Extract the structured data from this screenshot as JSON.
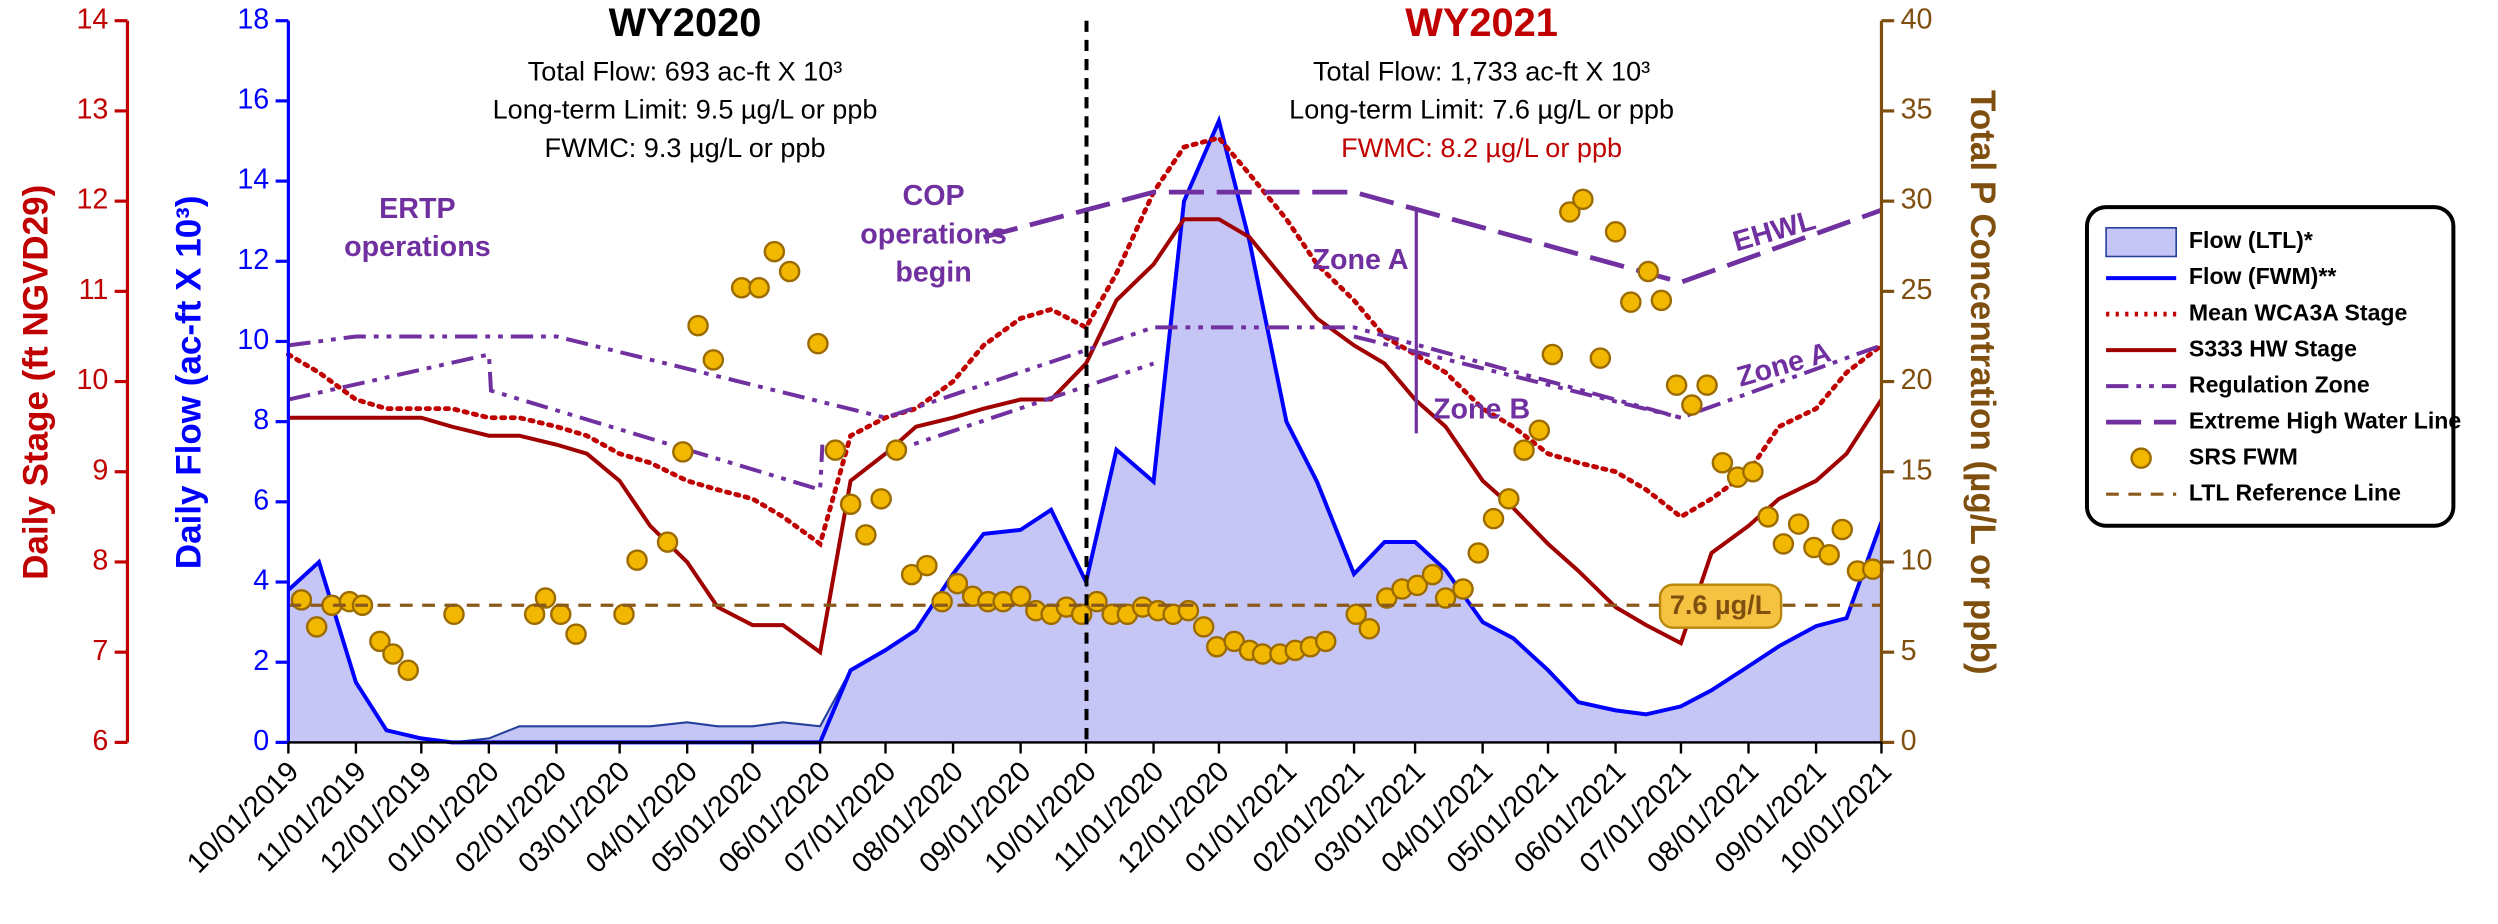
{
  "chart_data": {
    "type": "line",
    "ylabel": "Daily Flow (ac-ft X 10³)",
    "y2label": "Total P Concentration (µg/L or ppb)",
    "y3label": "Daily Stage (ft NGVD29)",
    "ylim": [
      0,
      18
    ],
    "yticks": [
      0,
      2,
      4,
      6,
      8,
      10,
      12,
      14,
      16,
      18
    ],
    "y2lim": [
      0,
      40
    ],
    "y2ticks": [
      0,
      5,
      10,
      15,
      20,
      25,
      30,
      35,
      40
    ],
    "y3lim": [
      6,
      14
    ],
    "y3ticks": [
      6,
      7,
      8,
      9,
      10,
      11,
      12,
      13,
      14
    ],
    "xlim": [
      "10/01/2019",
      "10/01/2021"
    ],
    "xticks": [
      "10/01/2019",
      "11/01/2019",
      "12/01/2019",
      "01/01/2020",
      "02/01/2020",
      "03/01/2020",
      "04/01/2020",
      "05/01/2020",
      "06/01/2020",
      "07/01/2020",
      "08/01/2020",
      "09/01/2020",
      "10/01/2020",
      "11/01/2020",
      "12/01/2020",
      "01/01/2021",
      "02/01/2021",
      "03/01/2021",
      "04/01/2021",
      "05/01/2021",
      "06/01/2021",
      "07/01/2021",
      "08/01/2021",
      "09/01/2021",
      "10/01/2021"
    ],
    "wy2020": {
      "title": "WY2020",
      "lines": [
        "Total Flow:  693 ac-ft X 10³",
        "Long-term Limit: 9.5 µg/L or ppb",
        "FWMC:  9.3 µg/L or ppb"
      ]
    },
    "wy2021": {
      "title": "WY2021",
      "lines": [
        "Total Flow:  1,733 ac-ft X 10³",
        "Long-term Limit: 7.6 µg/L or ppb",
        "FWMC:  8.2 µg/L or ppb"
      ]
    },
    "annotations": [
      "ERTP",
      "operations",
      "COP",
      "operations",
      "begin",
      "Zone A",
      "Zone B",
      "EHWL",
      "Zone A"
    ],
    "x": [
      "10/01/2019",
      "10/15/2019",
      "11/01/2019",
      "11/15/2019",
      "12/01/2019",
      "12/15/2019",
      "01/01/2020",
      "01/15/2020",
      "02/01/2020",
      "02/15/2020",
      "03/01/2020",
      "03/15/2020",
      "04/01/2020",
      "04/15/2020",
      "05/01/2020",
      "05/15/2020",
      "06/01/2020",
      "06/15/2020",
      "07/01/2020",
      "07/15/2020",
      "08/01/2020",
      "08/15/2020",
      "09/01/2020",
      "09/15/2020",
      "10/01/2020",
      "10/15/2020",
      "11/01/2020",
      "11/15/2020",
      "12/01/2020",
      "12/15/2020",
      "01/01/2021",
      "01/15/2021",
      "02/01/2021",
      "02/15/2021",
      "03/01/2021",
      "03/15/2021",
      "04/01/2021",
      "04/15/2021",
      "05/01/2021",
      "05/15/2021",
      "06/01/2021",
      "06/15/2021",
      "07/01/2021",
      "07/15/2021",
      "08/01/2021",
      "08/15/2021",
      "09/01/2021",
      "09/15/2021",
      "10/01/2021"
    ],
    "series": [
      {
        "name": "Flow (LTL)*",
        "style": "area",
        "axis": "y",
        "color": "#c6c6f6",
        "edge": "#24409a",
        "values": [
          3.8,
          4.5,
          1.5,
          0.3,
          0.1,
          0,
          0.1,
          0.4,
          0.4,
          0.4,
          0.4,
          0.4,
          0.5,
          0.4,
          0.4,
          0.5,
          0.4,
          1.8,
          2.3,
          2.8,
          4.2,
          5.2,
          5.3,
          5.8,
          4.0,
          7.3,
          6.5,
          13.5,
          15.5,
          12.5,
          8.0,
          6.5,
          4.2,
          5.0,
          5.0,
          4.3,
          3.0,
          2.6,
          1.8,
          1.0,
          0.8,
          0.7,
          0.9,
          1.3,
          1.9,
          2.4,
          2.9,
          3.1,
          5.5
        ]
      },
      {
        "name": "Flow (FWM)**",
        "style": "solid",
        "axis": "y",
        "color": "#0000ff",
        "values": [
          3.8,
          4.5,
          1.5,
          0.3,
          0.1,
          0,
          0,
          0,
          0,
          0,
          0,
          0,
          0,
          0,
          0,
          0,
          0,
          1.8,
          2.3,
          2.8,
          4.2,
          5.2,
          5.3,
          5.8,
          4.0,
          7.3,
          6.5,
          13.5,
          15.5,
          12.5,
          8.0,
          6.5,
          4.2,
          5.0,
          5.0,
          4.3,
          3.0,
          2.6,
          1.8,
          1.0,
          0.8,
          0.7,
          0.9,
          1.3,
          1.9,
          2.4,
          2.9,
          3.1,
          5.5
        ]
      },
      {
        "name": "Mean WCA3A Stage",
        "style": "dotted",
        "axis": "y3",
        "color": "#c00000",
        "values": [
          10.3,
          10.1,
          9.8,
          9.7,
          9.7,
          9.7,
          9.6,
          9.6,
          9.5,
          9.4,
          9.2,
          9.1,
          8.9,
          8.8,
          8.7,
          8.5,
          8.2,
          9.4,
          9.6,
          9.7,
          10.0,
          10.4,
          10.7,
          10.8,
          10.6,
          11.2,
          12.1,
          12.6,
          12.7,
          12.3,
          11.8,
          11.3,
          10.9,
          10.5,
          10.3,
          10.1,
          9.7,
          9.5,
          9.2,
          9.1,
          9.0,
          8.8,
          8.5,
          8.7,
          9.0,
          9.5,
          9.7,
          10.1,
          10.4
        ]
      },
      {
        "name": "S333 HW Stage",
        "style": "solid",
        "axis": "y3",
        "color": "#a00000",
        "values": [
          9.6,
          9.6,
          9.6,
          9.6,
          9.6,
          9.5,
          9.4,
          9.4,
          9.3,
          9.2,
          8.9,
          8.4,
          8.0,
          7.5,
          7.3,
          7.3,
          7.0,
          8.9,
          9.2,
          9.5,
          9.6,
          9.7,
          9.8,
          9.8,
          10.2,
          10.9,
          11.3,
          11.8,
          11.8,
          11.6,
          11.1,
          10.7,
          10.4,
          10.2,
          9.8,
          9.5,
          8.9,
          8.6,
          8.2,
          7.9,
          7.5,
          7.3,
          7.1,
          8.1,
          8.4,
          8.7,
          8.9,
          9.2,
          9.8
        ]
      },
      {
        "name": "Regulation Zone",
        "style": "dashdotdot",
        "axis": "y3",
        "color": "#7030a0",
        "x": [
          "10/01/2019",
          "11/01/2019",
          "02/01/2020",
          "07/01/2020",
          "11/01/2020",
          "02/01/2021",
          "07/01/2021",
          "10/01/2021",
          "10/01/2021",
          "10/01/2019",
          "01/01/2020",
          "01/02/2020",
          "06/01/2020",
          "06/02/2020",
          "06/02/2020",
          "07/01/2020",
          "11/01/2020",
          "11/01/2020",
          "02/01/2021",
          "07/01/2021"
        ],
        "values": [
          10.4,
          10.5,
          10.5,
          9.6,
          10.6,
          10.6,
          9.6,
          10.4,
          null,
          9.8,
          10.3,
          9.9,
          8.8,
          9.3,
          null,
          9.2,
          10.2,
          null,
          10.5,
          9.6
        ]
      },
      {
        "name": "Extreme High Water Line",
        "style": "longdash",
        "axis": "y3",
        "color": "#7030a0",
        "x": [
          "08/15/2020",
          "11/01/2020",
          "02/01/2021",
          "07/01/2021",
          "10/01/2021"
        ],
        "values": [
          11.6,
          12.1,
          12.1,
          11.1,
          11.9
        ]
      },
      {
        "name": "SRS FWM",
        "style": "scatter",
        "axis": "y2",
        "color": "#f2b700",
        "edge": "#9c6b00",
        "x": [
          "10/07/2019",
          "10/14/2019",
          "10/21/2019",
          "10/29/2019",
          "11/04/2019",
          "11/12/2019",
          "11/18/2019",
          "11/25/2019",
          "12/16/2019",
          "01/22/2020",
          "01/27/2020",
          "02/03/2020",
          "02/10/2020",
          "03/03/2020",
          "03/09/2020",
          "03/23/2020",
          "03/30/2020",
          "04/06/2020",
          "04/13/2020",
          "04/26/2020",
          "05/04/2020",
          "05/11/2020",
          "05/18/2020",
          "05/31/2020",
          "06/08/2020",
          "06/15/2020",
          "06/22/2020",
          "06/29/2020",
          "07/06/2020",
          "07/13/2020",
          "07/20/2020",
          "07/27/2020",
          "08/03/2020",
          "08/10/2020",
          "08/17/2020",
          "08/24/2020",
          "09/01/2020",
          "09/08/2020",
          "09/15/2020",
          "09/22/2020",
          "09/29/2020",
          "10/06/2020",
          "10/13/2020",
          "10/20/2020",
          "10/27/2020",
          "11/03/2020",
          "11/10/2020",
          "11/17/2020",
          "11/24/2020",
          "11/30/2020",
          "12/08/2020",
          "12/15/2020",
          "12/21/2020",
          "12/29/2020",
          "01/05/2021",
          "01/12/2021",
          "01/19/2021",
          "02/02/2021",
          "02/08/2021",
          "02/16/2021",
          "02/23/2021",
          "03/02/2021",
          "03/09/2021",
          "03/15/2021",
          "03/23/2021",
          "03/30/2021",
          "04/06/2021",
          "04/13/2021",
          "04/20/2021",
          "04/27/2021",
          "05/03/2021",
          "05/11/2021",
          "05/17/2021",
          "05/25/2021",
          "06/01/2021",
          "06/08/2021",
          "06/16/2021",
          "06/22/2021",
          "06/29/2021",
          "07/06/2021",
          "07/13/2021",
          "07/20/2021",
          "07/27/2021",
          "08/03/2021",
          "08/10/2021",
          "08/17/2021",
          "08/24/2021",
          "08/31/2021",
          "09/07/2021",
          "09/13/2021",
          "09/20/2021",
          "09/27/2021"
        ],
        "values": [
          7.9,
          6.4,
          7.6,
          7.8,
          7.6,
          5.6,
          4.9,
          4.0,
          7.1,
          7.1,
          8.0,
          7.1,
          6.0,
          7.1,
          10.1,
          11.1,
          16.1,
          23.1,
          21.2,
          25.2,
          25.2,
          27.2,
          26.1,
          22.1,
          16.2,
          13.2,
          11.5,
          13.5,
          16.2,
          9.3,
          9.8,
          7.8,
          8.8,
          8.1,
          7.8,
          7.8,
          8.1,
          7.3,
          7.1,
          7.5,
          7.1,
          7.8,
          7.1,
          7.1,
          7.5,
          7.3,
          7.1,
          7.3,
          6.4,
          5.3,
          5.6,
          5.1,
          4.9,
          4.9,
          5.1,
          5.3,
          5.6,
          7.1,
          6.3,
          8.0,
          8.5,
          8.7,
          9.3,
          8.0,
          8.5,
          10.5,
          12.4,
          13.5,
          16.2,
          17.3,
          21.5,
          29.4,
          30.1,
          21.3,
          28.3,
          24.4,
          26.1,
          24.5,
          19.8,
          18.7,
          19.8,
          15.5,
          14.7,
          15.0,
          12.5,
          11.0,
          12.1,
          10.8,
          10.4,
          11.8,
          9.5,
          9.6
        ]
      },
      {
        "name": "LTL Reference Line",
        "style": "dashed",
        "axis": "y2",
        "color": "#8b5a1b",
        "x": [
          "10/01/2019",
          "10/01/2021"
        ],
        "values": [
          7.6,
          7.6
        ],
        "value_labels": [
          null,
          "7.6 µg/L"
        ]
      }
    ]
  }
}
